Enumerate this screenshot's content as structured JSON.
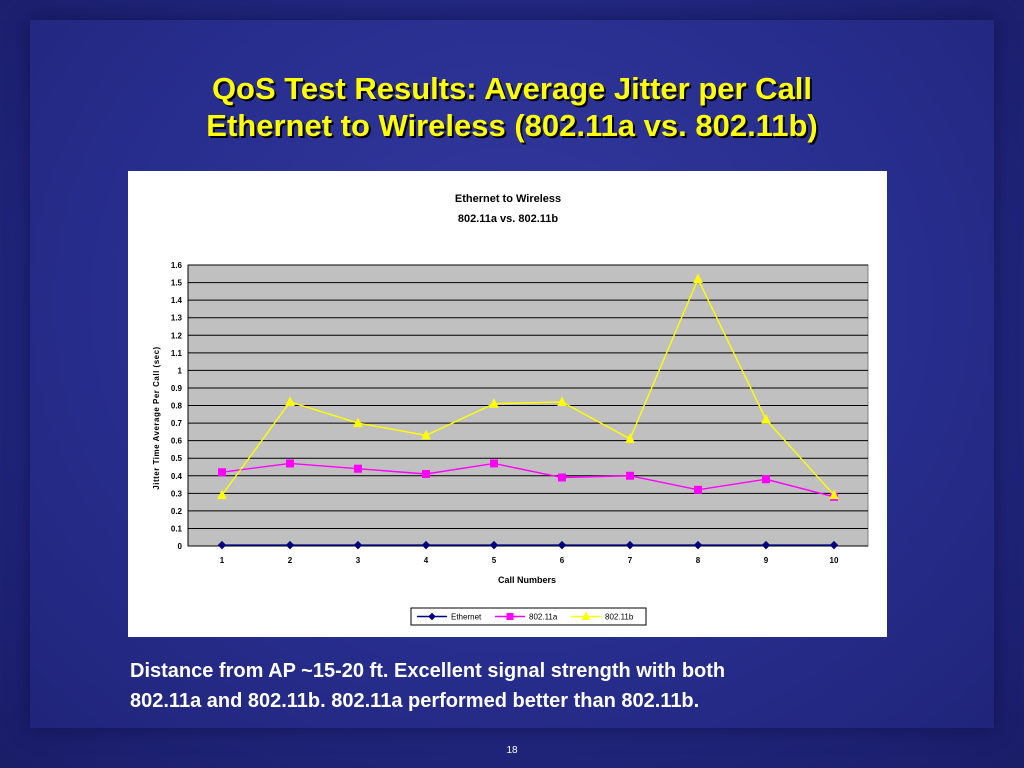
{
  "slide": {
    "title_line1": "QoS Test Results: Average Jitter per Call",
    "title_line2": "Ethernet to Wireless (802.11a vs. 802.11b)",
    "caption_line1": "Distance from AP ~15-20 ft. Excellent signal strength with both",
    "caption_line2": "802.11a and 802.11b. 802.11a performed better than 802.11b.",
    "slide_number": "18"
  },
  "chart_data": {
    "type": "line",
    "title": "Ethernet to Wireless",
    "subtitle": "802.11a vs. 802.11b",
    "xlabel": "Call Numbers",
    "ylabel": "Jitter Time Average Per Call (sec)",
    "x": [
      "1",
      "2",
      "3",
      "4",
      "5",
      "6",
      "7",
      "8",
      "9",
      "10"
    ],
    "ylim": [
      0,
      1.6
    ],
    "yticks": [
      "0",
      "0.1",
      "0.2",
      "0.3",
      "0.4",
      "0.5",
      "0.6",
      "0.7",
      "0.8",
      "0.9",
      "1",
      "1.1",
      "1.2",
      "1.3",
      "1.4",
      "1.5",
      "1.6"
    ],
    "grid": true,
    "legend_position": "bottom",
    "plot_background": "#c0c0c0",
    "series": [
      {
        "name": "Ethernet",
        "color": "#000080",
        "marker": "diamond",
        "values": [
          0.005,
          0.005,
          0.005,
          0.005,
          0.005,
          0.005,
          0.005,
          0.005,
          0.005,
          0.005
        ]
      },
      {
        "name": "802.11a",
        "color": "#ff00ff",
        "marker": "square",
        "values": [
          0.42,
          0.47,
          0.44,
          0.41,
          0.47,
          0.39,
          0.4,
          0.32,
          0.38,
          0.28
        ]
      },
      {
        "name": "802.11b",
        "color": "#ffff00",
        "marker": "triangle",
        "values": [
          0.29,
          0.82,
          0.7,
          0.63,
          0.81,
          0.82,
          0.61,
          1.52,
          0.72,
          0.29
        ]
      }
    ]
  }
}
